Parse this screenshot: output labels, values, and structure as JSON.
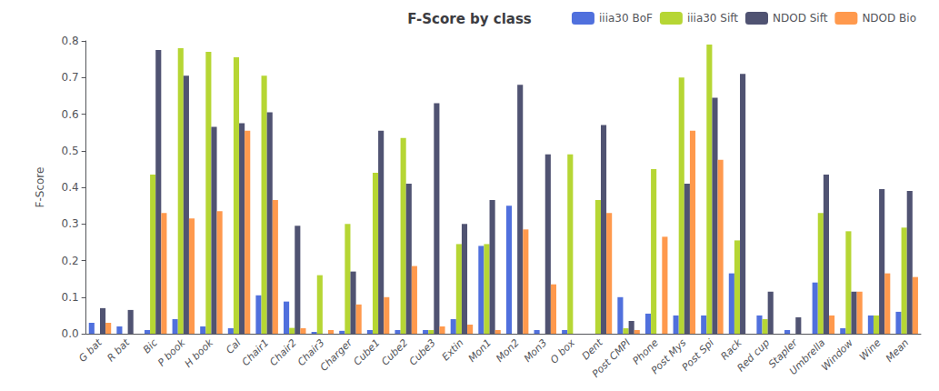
{
  "chart_data": {
    "type": "bar",
    "title": "F-Score by class",
    "ylabel": "F-Score",
    "categories": [
      "G bat",
      "R bat",
      "Bic",
      "P book",
      "H book",
      "Cal",
      "Chair1",
      "Chair2",
      "Chair3",
      "Charger",
      "Cube1",
      "Cube2",
      "Cube3",
      "Extin",
      "Mon1",
      "Mon2",
      "Mon3",
      "O box",
      "Dent",
      "Post CMPI",
      "Phone",
      "Post Mys",
      "Post Spi",
      "Rack",
      "Red cup",
      "Stapler",
      "Umbrella",
      "Window",
      "Wine",
      "Mean"
    ],
    "series": [
      {
        "name": "iiia30 BoF",
        "values": [
          0.03,
          0.02,
          0.01,
          0.04,
          0.02,
          0.015,
          0.105,
          0.088,
          0.005,
          0.008,
          0.01,
          0.01,
          0.01,
          0.04,
          0.24,
          0.35,
          0.01,
          0.01,
          0.0,
          0.1,
          0.055,
          0.05,
          0.05,
          0.165,
          0.05,
          0.01,
          0.14,
          0.015,
          0.05,
          0.06
        ]
      },
      {
        "name": "iiia30 Sift",
        "values": [
          0.0,
          0.0,
          0.435,
          0.78,
          0.77,
          0.755,
          0.705,
          0.016,
          0.16,
          0.3,
          0.44,
          0.535,
          0.01,
          0.245,
          0.245,
          0.0,
          0.0,
          0.49,
          0.365,
          0.015,
          0.45,
          0.7,
          0.79,
          0.255,
          0.04,
          0.0,
          0.33,
          0.28,
          0.05,
          0.29
        ]
      },
      {
        "name": "NDOD Sift",
        "values": [
          0.07,
          0.065,
          0.775,
          0.705,
          0.565,
          0.575,
          0.605,
          0.295,
          0.0,
          0.17,
          0.555,
          0.41,
          0.63,
          0.3,
          0.365,
          0.68,
          0.49,
          0.0,
          0.57,
          0.035,
          0.0,
          0.41,
          0.645,
          0.71,
          0.115,
          0.045,
          0.435,
          0.115,
          0.395,
          0.39
        ]
      },
      {
        "name": "NDOD Bio",
        "values": [
          0.03,
          0.0,
          0.33,
          0.315,
          0.335,
          0.555,
          0.365,
          0.015,
          0.01,
          0.08,
          0.1,
          0.185,
          0.02,
          0.025,
          0.01,
          0.285,
          0.135,
          0.0,
          0.33,
          0.01,
          0.265,
          0.555,
          0.475,
          0.0,
          0.0,
          0.0,
          0.05,
          0.115,
          0.165,
          0.155
        ]
      }
    ],
    "ylim": [
      0.0,
      0.8
    ],
    "yticks": [
      {
        "value": 0,
        "label": "0.0"
      },
      0.1,
      0.2,
      0.3,
      0.4,
      0.5,
      0.6,
      0.7,
      0.8
    ],
    "grid": false,
    "legend": "upper right"
  }
}
